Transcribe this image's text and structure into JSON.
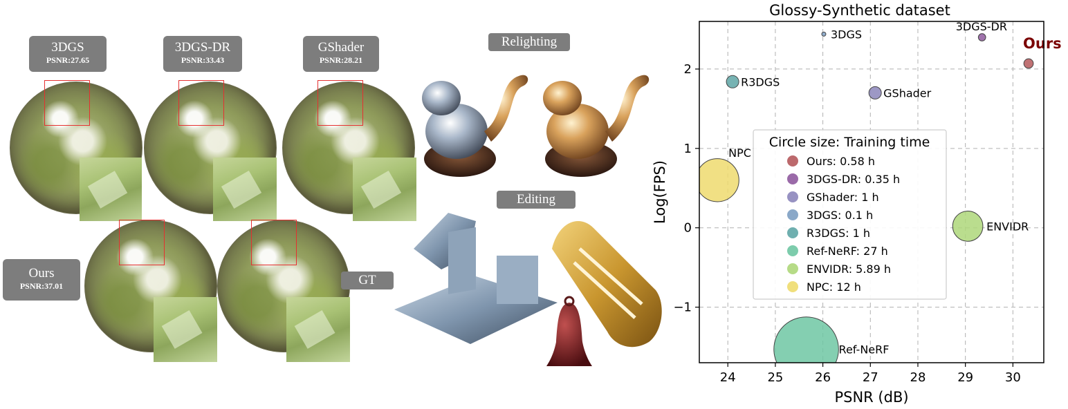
{
  "figure": {
    "comparisons_top": [
      {
        "name": "3DGS",
        "psnr": "PSNR:27.65"
      },
      {
        "name": "3DGS-DR",
        "psnr": "PSNR:33.43"
      },
      {
        "name": "GShader",
        "psnr": "PSNR:28.21"
      }
    ],
    "comparisons_bottom": [
      {
        "name": "Ours",
        "psnr": "PSNR:37.01"
      }
    ],
    "gt_label": "GT",
    "relighting_label": "Relighting",
    "editing_label": "Editing"
  },
  "chart_data": {
    "type": "scatter",
    "title": "Glossy-Synthetic dataset",
    "xlabel": "PSNR (dB)",
    "ylabel": "Log(FPS)",
    "xlim": [
      23.4,
      30.65
    ],
    "ylim": [
      -1.7,
      2.6
    ],
    "xticks": [
      24,
      25,
      26,
      27,
      28,
      29,
      30
    ],
    "xtick_labels": [
      "24",
      "25",
      "26",
      "27",
      "28",
      "29",
      "30"
    ],
    "yticks": [
      -1,
      0,
      1,
      2
    ],
    "ytick_labels": [
      "−1",
      "0",
      "1",
      "2"
    ],
    "grid": true,
    "legend_title": "Circle size: Training time",
    "legend_placement": "center",
    "points": [
      {
        "name": "Ours",
        "x": 30.33,
        "y": 2.07,
        "training_time_h": 0.58,
        "color": "#b5595c",
        "label": "Ours",
        "highlight": true
      },
      {
        "name": "3DGS-DR",
        "x": 29.35,
        "y": 2.4,
        "training_time_h": 0.35,
        "color": "#8f5a9e",
        "label": "3DGS-DR"
      },
      {
        "name": "GShader",
        "x": 27.1,
        "y": 1.7,
        "training_time_h": 1,
        "color": "#8c86bb",
        "label": "GShader"
      },
      {
        "name": "3DGS",
        "x": 26.02,
        "y": 2.44,
        "training_time_h": 0.1,
        "color": "#7d9ec2",
        "label": "3DGS"
      },
      {
        "name": "R3DGS",
        "x": 24.1,
        "y": 1.84,
        "training_time_h": 1,
        "color": "#5fa6a6",
        "label": "R3DGS"
      },
      {
        "name": "Ref-NeRF",
        "x": 25.65,
        "y": -1.53,
        "training_time_h": 27,
        "color": "#6fc7a3",
        "label": "Ref-NeRF"
      },
      {
        "name": "ENVIDR",
        "x": 29.05,
        "y": 0.02,
        "training_time_h": 5.89,
        "color": "#aed77a",
        "label": "ENVIDR"
      },
      {
        "name": "NPC",
        "x": 23.78,
        "y": 0.6,
        "training_time_h": 12,
        "color": "#eedb6e",
        "label": "NPC"
      }
    ],
    "legend_entries": [
      {
        "label": "Ours: 0.58 h",
        "color": "#b5595c"
      },
      {
        "label": "3DGS-DR: 0.35 h",
        "color": "#8f5a9e"
      },
      {
        "label": "GShader: 1 h",
        "color": "#8c86bb"
      },
      {
        "label": "3DGS: 0.1 h",
        "color": "#7d9ec2"
      },
      {
        "label": "R3DGS: 1 h",
        "color": "#5fa6a6"
      },
      {
        "label": "Ref-NeRF: 27 h",
        "color": "#6fc7a3"
      },
      {
        "label": "ENVIDR: 5.89 h",
        "color": "#aed77a"
      },
      {
        "label": "NPC: 12 h",
        "color": "#eedb6e"
      }
    ]
  }
}
